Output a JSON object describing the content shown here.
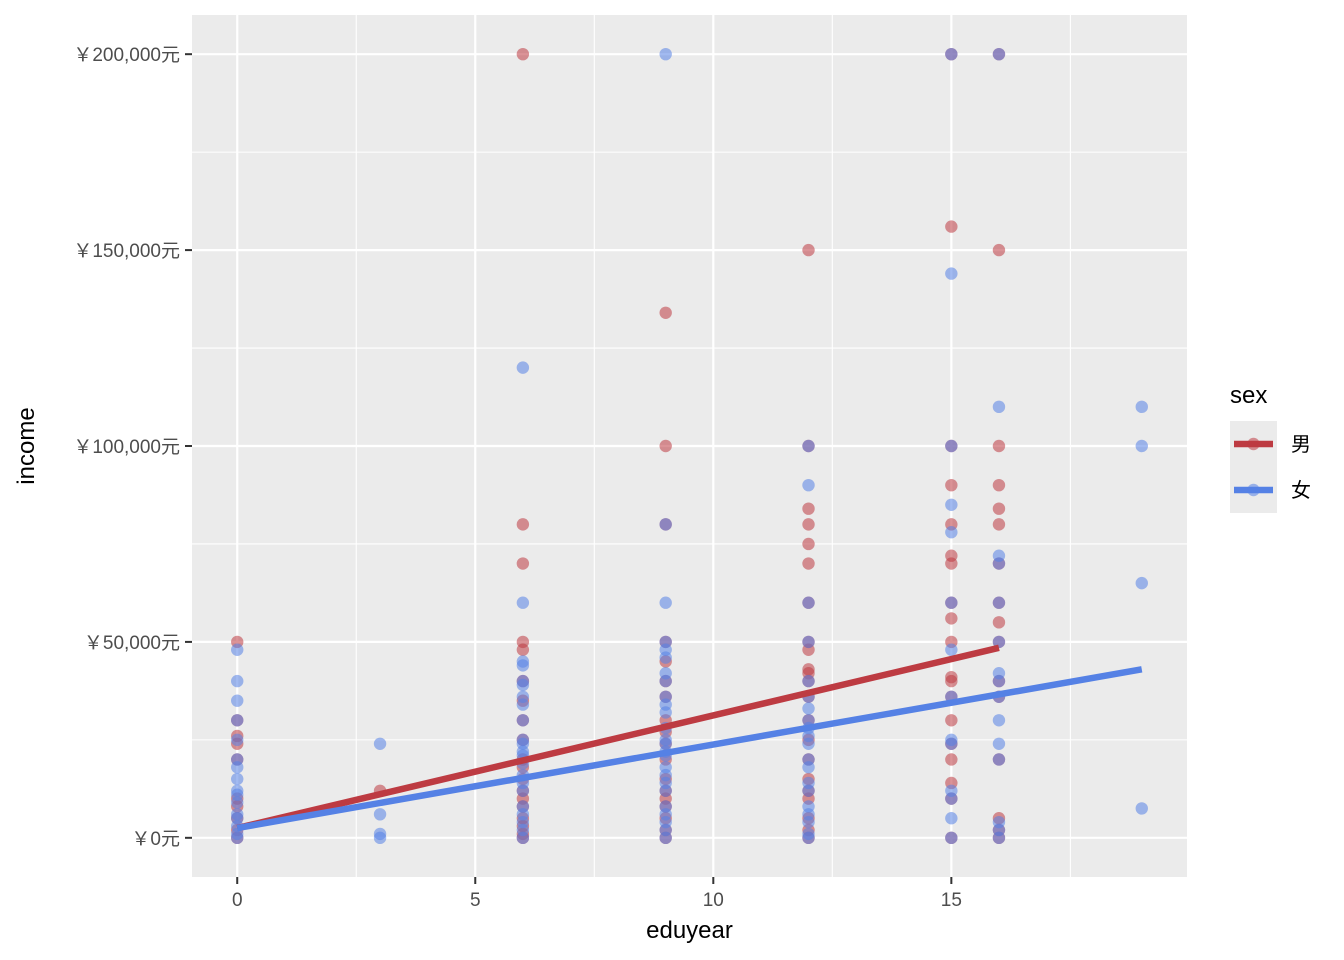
{
  "chart_data": {
    "type": "scatter",
    "xlabel": "eduyear",
    "ylabel": "income",
    "xlim": [
      -0.95,
      19.95
    ],
    "ylim": [
      -10000,
      210000
    ],
    "x_ticks": [
      0,
      5,
      10,
      15
    ],
    "x_tick_labels": [
      "0",
      "5",
      "10",
      "15"
    ],
    "y_ticks": [
      0,
      50000,
      100000,
      150000,
      200000
    ],
    "y_tick_labels": [
      "￥0元",
      "￥50,000元",
      "￥100,000元",
      "￥150,000元",
      "￥200,000元"
    ],
    "grid": true,
    "legend": {
      "title": "sex",
      "position": "right"
    },
    "series": [
      {
        "name": "男",
        "color": "#BD3B42",
        "points": [
          [
            0,
            50000
          ],
          [
            0,
            30000
          ],
          [
            0,
            26000
          ],
          [
            0,
            24000
          ],
          [
            0,
            20000
          ],
          [
            0,
            10000
          ],
          [
            0,
            8000
          ],
          [
            0,
            5000
          ],
          [
            0,
            2000
          ],
          [
            0,
            0
          ],
          [
            3,
            12000
          ],
          [
            6,
            200000
          ],
          [
            6,
            80000
          ],
          [
            6,
            70000
          ],
          [
            6,
            50000
          ],
          [
            6,
            48000
          ],
          [
            6,
            40000
          ],
          [
            6,
            35000
          ],
          [
            6,
            30000
          ],
          [
            6,
            25000
          ],
          [
            6,
            20000
          ],
          [
            6,
            18000
          ],
          [
            6,
            15000
          ],
          [
            6,
            12000
          ],
          [
            6,
            10000
          ],
          [
            6,
            8000
          ],
          [
            6,
            5000
          ],
          [
            6,
            3000
          ],
          [
            6,
            1000
          ],
          [
            6,
            0
          ],
          [
            9,
            134000
          ],
          [
            9,
            100000
          ],
          [
            9,
            80000
          ],
          [
            9,
            50000
          ],
          [
            9,
            45000
          ],
          [
            9,
            40000
          ],
          [
            9,
            36000
          ],
          [
            9,
            30000
          ],
          [
            9,
            27000
          ],
          [
            9,
            24000
          ],
          [
            9,
            20000
          ],
          [
            9,
            15000
          ],
          [
            9,
            12000
          ],
          [
            9,
            10000
          ],
          [
            9,
            8000
          ],
          [
            9,
            5000
          ],
          [
            9,
            2000
          ],
          [
            9,
            0
          ],
          [
            12,
            150000
          ],
          [
            12,
            100000
          ],
          [
            12,
            84000
          ],
          [
            12,
            80000
          ],
          [
            12,
            75000
          ],
          [
            12,
            70000
          ],
          [
            12,
            60000
          ],
          [
            12,
            50000
          ],
          [
            12,
            48000
          ],
          [
            12,
            43000
          ],
          [
            12,
            42000
          ],
          [
            12,
            40000
          ],
          [
            12,
            36000
          ],
          [
            12,
            30000
          ],
          [
            12,
            25000
          ],
          [
            12,
            20000
          ],
          [
            12,
            15000
          ],
          [
            12,
            12000
          ],
          [
            12,
            10000
          ],
          [
            12,
            5000
          ],
          [
            12,
            2000
          ],
          [
            12,
            0
          ],
          [
            15,
            200000
          ],
          [
            15,
            156000
          ],
          [
            15,
            100000
          ],
          [
            15,
            90000
          ],
          [
            15,
            80000
          ],
          [
            15,
            72000
          ],
          [
            15,
            70000
          ],
          [
            15,
            60000
          ],
          [
            15,
            56000
          ],
          [
            15,
            50000
          ],
          [
            15,
            41000
          ],
          [
            15,
            40000
          ],
          [
            15,
            36000
          ],
          [
            15,
            30000
          ],
          [
            15,
            24000
          ],
          [
            15,
            20000
          ],
          [
            15,
            14000
          ],
          [
            15,
            10000
          ],
          [
            15,
            0
          ],
          [
            16,
            200000
          ],
          [
            16,
            150000
          ],
          [
            16,
            100000
          ],
          [
            16,
            90000
          ],
          [
            16,
            84000
          ],
          [
            16,
            80000
          ],
          [
            16,
            70000
          ],
          [
            16,
            60000
          ],
          [
            16,
            55000
          ],
          [
            16,
            50000
          ],
          [
            16,
            40000
          ],
          [
            16,
            36000
          ],
          [
            16,
            20000
          ],
          [
            16,
            5000
          ],
          [
            16,
            2000
          ],
          [
            16,
            0
          ]
        ],
        "fit": [
          [
            0,
            2500
          ],
          [
            16,
            48500
          ]
        ]
      },
      {
        "name": "女",
        "color": "#5581E5",
        "points": [
          [
            0,
            48000
          ],
          [
            0,
            40000
          ],
          [
            0,
            35000
          ],
          [
            0,
            30000
          ],
          [
            0,
            25000
          ],
          [
            0,
            20000
          ],
          [
            0,
            18000
          ],
          [
            0,
            15000
          ],
          [
            0,
            12000
          ],
          [
            0,
            11000
          ],
          [
            0,
            9000
          ],
          [
            0,
            6000
          ],
          [
            0,
            5000
          ],
          [
            0,
            3000
          ],
          [
            0,
            1000
          ],
          [
            0,
            0
          ],
          [
            3,
            24000
          ],
          [
            3,
            6000
          ],
          [
            3,
            1000
          ],
          [
            3,
            0
          ],
          [
            6,
            120000
          ],
          [
            6,
            60000
          ],
          [
            6,
            45000
          ],
          [
            6,
            44000
          ],
          [
            6,
            40000
          ],
          [
            6,
            39000
          ],
          [
            6,
            36000
          ],
          [
            6,
            34000
          ],
          [
            6,
            30000
          ],
          [
            6,
            25000
          ],
          [
            6,
            24000
          ],
          [
            6,
            22000
          ],
          [
            6,
            21000
          ],
          [
            6,
            19000
          ],
          [
            6,
            16000
          ],
          [
            6,
            14000
          ],
          [
            6,
            12000
          ],
          [
            6,
            8000
          ],
          [
            6,
            6000
          ],
          [
            6,
            4000
          ],
          [
            6,
            2000
          ],
          [
            6,
            0
          ],
          [
            9,
            200000
          ],
          [
            9,
            80000
          ],
          [
            9,
            60000
          ],
          [
            9,
            50000
          ],
          [
            9,
            48000
          ],
          [
            9,
            46000
          ],
          [
            9,
            42000
          ],
          [
            9,
            40000
          ],
          [
            9,
            36000
          ],
          [
            9,
            34000
          ],
          [
            9,
            32000
          ],
          [
            9,
            28000
          ],
          [
            9,
            25000
          ],
          [
            9,
            24000
          ],
          [
            9,
            22000
          ],
          [
            9,
            21000
          ],
          [
            9,
            18000
          ],
          [
            9,
            16000
          ],
          [
            9,
            14000
          ],
          [
            9,
            12000
          ],
          [
            9,
            8000
          ],
          [
            9,
            6000
          ],
          [
            9,
            4000
          ],
          [
            9,
            2000
          ],
          [
            9,
            0
          ],
          [
            12,
            100000
          ],
          [
            12,
            90000
          ],
          [
            12,
            60000
          ],
          [
            12,
            50000
          ],
          [
            12,
            40000
          ],
          [
            12,
            36000
          ],
          [
            12,
            33000
          ],
          [
            12,
            30000
          ],
          [
            12,
            28000
          ],
          [
            12,
            26000
          ],
          [
            12,
            24000
          ],
          [
            12,
            20000
          ],
          [
            12,
            18000
          ],
          [
            12,
            14000
          ],
          [
            12,
            12000
          ],
          [
            12,
            8000
          ],
          [
            12,
            6000
          ],
          [
            12,
            4000
          ],
          [
            12,
            1000
          ],
          [
            12,
            0
          ],
          [
            15,
            200000
          ],
          [
            15,
            144000
          ],
          [
            15,
            100000
          ],
          [
            15,
            85000
          ],
          [
            15,
            78000
          ],
          [
            15,
            60000
          ],
          [
            15,
            48000
          ],
          [
            15,
            36000
          ],
          [
            15,
            25000
          ],
          [
            15,
            24000
          ],
          [
            15,
            12000
          ],
          [
            15,
            10000
          ],
          [
            15,
            5000
          ],
          [
            15,
            0
          ],
          [
            16,
            200000
          ],
          [
            16,
            110000
          ],
          [
            16,
            72000
          ],
          [
            16,
            70000
          ],
          [
            16,
            60000
          ],
          [
            16,
            50000
          ],
          [
            16,
            42000
          ],
          [
            16,
            40000
          ],
          [
            16,
            36000
          ],
          [
            16,
            30000
          ],
          [
            16,
            24000
          ],
          [
            16,
            20000
          ],
          [
            16,
            4000
          ],
          [
            16,
            2000
          ],
          [
            16,
            0
          ],
          [
            19,
            110000
          ],
          [
            19,
            100000
          ],
          [
            19,
            65000
          ],
          [
            19,
            7500
          ]
        ],
        "fit": [
          [
            0,
            2500
          ],
          [
            19,
            43000
          ]
        ]
      }
    ]
  }
}
